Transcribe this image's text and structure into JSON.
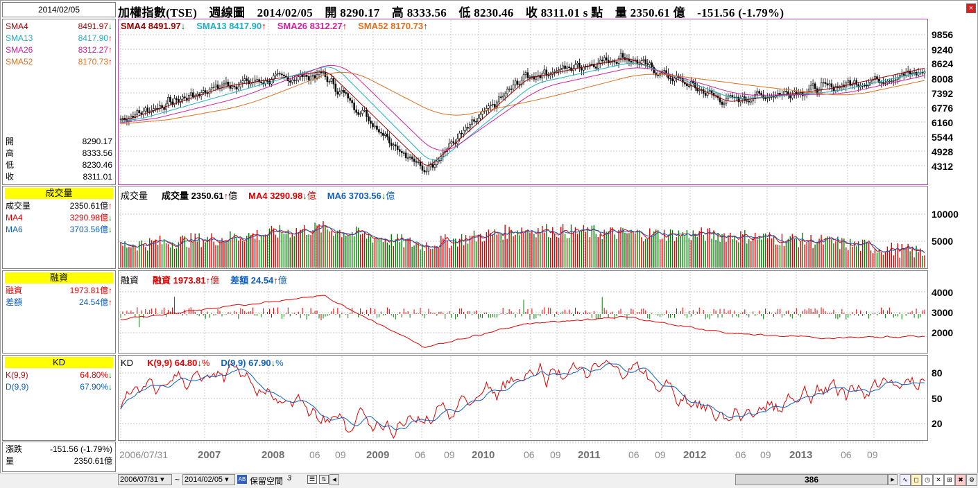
{
  "header": {
    "date": "2014/02/05",
    "title": "加權指數(TSE)　週線圖　2014/02/05　開 8290.17　高 8333.56　低 8230.46　收 8311.01 s 點　量 2350.61 億　-151.56 (-1.79%)"
  },
  "left": {
    "sma": [
      {
        "name": "SMA4",
        "value": "8491.97",
        "arrow": "↓",
        "color": "#9a0000"
      },
      {
        "name": "SMA13",
        "value": "8417.90",
        "arrow": "↑",
        "color": "#20b0c0"
      },
      {
        "name": "SMA26",
        "value": "8312.27",
        "arrow": "↑",
        "color": "#d020a0"
      },
      {
        "name": "SMA52",
        "value": "8170.73",
        "arrow": "↑",
        "color": "#e07020"
      }
    ],
    "ohlc": [
      {
        "name": "開",
        "value": "8290.17"
      },
      {
        "name": "高",
        "value": "8333.56"
      },
      {
        "name": "低",
        "value": "8230.46"
      },
      {
        "name": "收",
        "value": "8311.01"
      }
    ],
    "volume_header": "成交量",
    "volume": [
      {
        "name": "成交量",
        "value": "2350.61億",
        "arrow": "↑",
        "color": "#000000"
      },
      {
        "name": "MA4",
        "value": "3290.98億",
        "arrow": "↓",
        "color": "#e00000"
      },
      {
        "name": "MA6",
        "value": "3703.56億",
        "arrow": "↓",
        "color": "#1060c0"
      }
    ],
    "margin_header": "融資",
    "margin": [
      {
        "name": "融資",
        "value": "1973.81億",
        "arrow": "↑",
        "color": "#e00000"
      },
      {
        "name": "差額",
        "value": "24.54億",
        "arrow": "↑",
        "color": "#1060c0"
      }
    ],
    "kd_header": "KD",
    "kd": [
      {
        "name": "K(9,9)",
        "value": "64.80%",
        "arrow": "↓",
        "color": "#e00000"
      },
      {
        "name": "D(9,9)",
        "value": "67.90%",
        "arrow": "↓",
        "color": "#1060c0"
      }
    ],
    "change": [
      {
        "name": "漲跌",
        "value": "-151.56 (-1.79%)"
      },
      {
        "name": "量",
        "value": "2350.61億"
      }
    ]
  },
  "panels": {
    "price": {
      "items": [
        {
          "text": "SMA4 8491.97",
          "arrow": "↓",
          "color": "#9a0000"
        },
        {
          "text": "SMA13 8417.90",
          "arrow": "↑",
          "color": "#20b0c0"
        },
        {
          "text": "SMA26 8312.27",
          "arrow": "↑",
          "color": "#d020a0"
        },
        {
          "text": "SMA52 8170.73",
          "arrow": "↑",
          "color": "#e07020"
        }
      ],
      "yticks": [
        "9856",
        "9240",
        "8624",
        "8008",
        "7392",
        "6776",
        "6160",
        "5544",
        "4928",
        "4312"
      ]
    },
    "volume": {
      "label": "成交量",
      "items": [
        {
          "text": "成交量 2350.61",
          "arrow": "↑",
          "unit": "億",
          "color": "#000000"
        },
        {
          "text": "MA4 3290.98",
          "arrow": "↓",
          "unit": "億",
          "color": "#e00000"
        },
        {
          "text": "MA6 3703.56",
          "arrow": "↓",
          "unit": "億",
          "color": "#1060c0"
        }
      ],
      "yticks": [
        "10000",
        "5000"
      ]
    },
    "margin": {
      "label": "融資",
      "items": [
        {
          "text": "融資 1973.81",
          "arrow": "↑",
          "unit": "億",
          "color": "#e00000"
        },
        {
          "text": "差額 24.54",
          "arrow": "↑",
          "unit": "億",
          "color": "#1060c0"
        }
      ],
      "yticks": [
        "4000",
        "3000",
        "2000"
      ]
    },
    "kd": {
      "label": "KD",
      "items": [
        {
          "text": "K(9,9) 64.80",
          "arrow": "↓",
          "unit": "%",
          "color": "#e00000"
        },
        {
          "text": "D(9,9) 67.90",
          "arrow": "↓",
          "unit": "%",
          "color": "#1060c0"
        }
      ],
      "yticks": [
        "80",
        "50",
        "20"
      ]
    }
  },
  "xaxis": [
    {
      "t": "2006/07/31",
      "bold": false
    },
    {
      "t": "2007",
      "bold": true
    },
    {
      "t": "2008",
      "bold": true
    },
    {
      "t": "06",
      "bold": false
    },
    {
      "t": "09",
      "bold": false
    },
    {
      "t": "2009",
      "bold": true
    },
    {
      "t": "06",
      "bold": false
    },
    {
      "t": "09",
      "bold": false
    },
    {
      "t": "2010",
      "bold": true
    },
    {
      "t": "06",
      "bold": false
    },
    {
      "t": "09",
      "bold": false
    },
    {
      "t": "2011",
      "bold": true
    },
    {
      "t": "06",
      "bold": false
    },
    {
      "t": "09",
      "bold": false
    },
    {
      "t": "2012",
      "bold": true
    },
    {
      "t": "06",
      "bold": false
    },
    {
      "t": "09",
      "bold": false
    },
    {
      "t": "2013",
      "bold": true
    },
    {
      "t": "06",
      "bold": false
    },
    {
      "t": "09",
      "bold": false
    }
  ],
  "status": {
    "from": "2006/07/31",
    "tilde": "~",
    "to": "2014/02/05",
    "reserve_label": "保留空間",
    "reserve_value": "3",
    "scroll_value": "386"
  },
  "chart_data": [
    {
      "type": "candlestick",
      "title": "加權指數(TSE) 週線圖",
      "ylim": [
        4000,
        10300
      ],
      "x": [
        "2006/07/31",
        "2007/01",
        "2008/01",
        "2009/01",
        "2010/01",
        "2011/01",
        "2012/01",
        "2013/01",
        "2014/02/05"
      ],
      "close": [
        6500,
        7800,
        8200,
        4500,
        8100,
        8900,
        7200,
        7700,
        8311
      ],
      "series": [
        {
          "name": "SMA4",
          "values": [
            6450,
            7750,
            8350,
            4600,
            8050,
            8850,
            7150,
            7650,
            8492
          ]
        },
        {
          "name": "SMA13",
          "values": [
            6400,
            7500,
            8600,
            4700,
            7850,
            8700,
            7250,
            7550,
            8418
          ]
        },
        {
          "name": "SMA26",
          "values": [
            6350,
            7300,
            8750,
            5000,
            7700,
            8550,
            7400,
            7450,
            8312
          ]
        },
        {
          "name": "SMA52",
          "values": [
            6300,
            7000,
            8500,
            6500,
            7300,
            8300,
            7800,
            7350,
            8171
          ]
        }
      ]
    },
    {
      "type": "bar",
      "title": "成交量",
      "ylim": [
        0,
        12000
      ],
      "x": [
        "2006/07/31",
        "2007/01",
        "2008/01",
        "2009/01",
        "2010/01",
        "2011/01",
        "2012/01",
        "2013/01",
        "2014/02/05"
      ],
      "series": [
        {
          "name": "成交量",
          "values": [
            3500,
            4500,
            6000,
            3500,
            5800,
            5200,
            5000,
            4000,
            2351
          ]
        },
        {
          "name": "MA4",
          "values": [
            3600,
            4600,
            5500,
            3400,
            5700,
            5100,
            4900,
            4100,
            3291
          ]
        },
        {
          "name": "MA6",
          "values": [
            3700,
            4700,
            5400,
            3600,
            5600,
            5200,
            5000,
            4200,
            3704
          ]
        }
      ]
    },
    {
      "type": "line",
      "title": "融資",
      "ylim": [
        1300,
        4700
      ],
      "x": [
        "2006/07/31",
        "2007/01",
        "2008/01",
        "2009/01",
        "2010/01",
        "2011/01",
        "2012/01",
        "2013/01",
        "2014/02/05"
      ],
      "series": [
        {
          "name": "融資",
          "values": [
            2700,
            3200,
            3700,
            1500,
            2500,
            2800,
            2100,
            1900,
            1974
          ]
        },
        {
          "name": "差額",
          "values": [
            0,
            30,
            -50,
            -80,
            20,
            10,
            -10,
            5,
            25
          ]
        }
      ]
    },
    {
      "type": "line",
      "title": "KD",
      "ylim": [
        0,
        100
      ],
      "x": [
        "2006/07/31",
        "2007/01",
        "2008/01",
        "2009/01",
        "2010/01",
        "2011/01",
        "2012/01",
        "2013/01",
        "2014/02/05"
      ],
      "series": [
        {
          "name": "K(9,9)",
          "values": [
            55,
            85,
            25,
            15,
            80,
            85,
            25,
            60,
            64.8
          ]
        },
        {
          "name": "D(9,9)",
          "values": [
            50,
            75,
            45,
            20,
            70,
            80,
            40,
            55,
            67.9
          ]
        }
      ]
    }
  ]
}
